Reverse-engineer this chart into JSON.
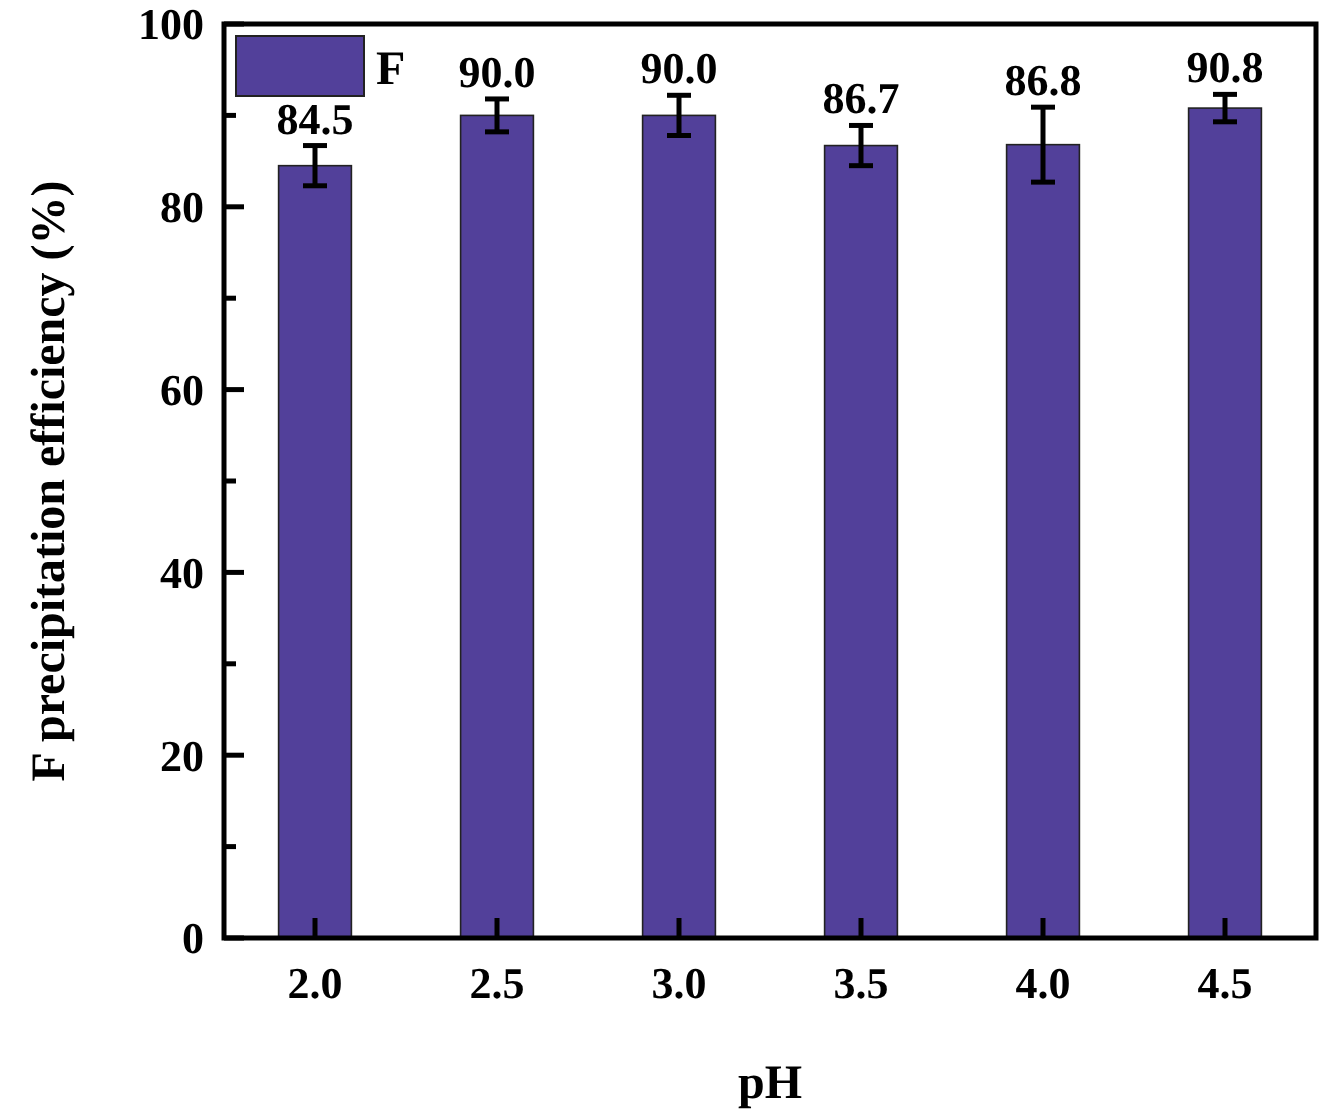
{
  "chart_data": {
    "type": "bar",
    "xlabel": "pH",
    "ylabel": "F precipitation efficiency (%)",
    "categories": [
      "2.0",
      "2.5",
      "3.0",
      "3.5",
      "4.0",
      "4.5"
    ],
    "series": [
      {
        "name": "F",
        "color": "#52409a",
        "values": [
          84.5,
          90.0,
          90.0,
          86.7,
          86.8,
          90.8
        ],
        "errors": [
          2.2,
          1.8,
          2.2,
          2.2,
          4.1,
          1.5
        ],
        "value_labels": [
          "84.5",
          "90.0",
          "90.0",
          "86.7",
          "86.8",
          "90.8"
        ]
      }
    ],
    "ylim": [
      0,
      100
    ],
    "yticks": [
      0,
      {
        "value": 10,
        "label": null
      },
      20,
      {
        "value": 30,
        "label": null
      },
      40,
      {
        "value": 50,
        "label": null
      },
      60,
      {
        "value": 70,
        "label": null
      },
      80,
      {
        "value": 90,
        "label": null
      },
      100
    ],
    "legend": "top left",
    "grid": false
  }
}
